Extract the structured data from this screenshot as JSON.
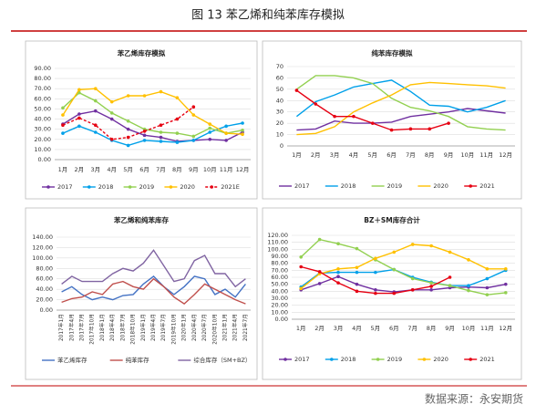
{
  "header": {
    "title": "图 13 苯乙烯和纯苯库存模拟"
  },
  "footer": {
    "source": "数据来源：永安期货"
  },
  "chart_data": [
    {
      "type": "line",
      "title": "苯乙烯库存模拟",
      "markers": true,
      "grid": true,
      "categories": [
        "1月",
        "2月",
        "3月",
        "4月",
        "5月",
        "6月",
        "7月",
        "8月",
        "9月",
        "10月",
        "11月",
        "12月"
      ],
      "ylim": [
        0,
        90
      ],
      "yticks": [
        {
          "value": 0,
          "label": "0.00"
        },
        {
          "value": 10,
          "label": "10.00"
        },
        {
          "value": 20,
          "label": "20.00"
        },
        {
          "value": 30,
          "label": "30.00"
        },
        {
          "value": 40,
          "label": "40.00"
        },
        {
          "value": 50,
          "label": "50.00"
        },
        {
          "value": 60,
          "label": "60.00"
        },
        {
          "value": 70,
          "label": "70.00"
        },
        {
          "value": 80,
          "label": "80.00"
        },
        {
          "value": 90,
          "label": "90.00"
        }
      ],
      "series": [
        {
          "name": "2017",
          "color": "#7030a0",
          "values": [
            35,
            45,
            48,
            40,
            30,
            24,
            22,
            18,
            19,
            20,
            19,
            27
          ]
        },
        {
          "name": "2018",
          "color": "#00a0e9",
          "values": [
            26,
            33,
            27,
            19,
            14,
            19,
            18,
            17,
            19,
            27,
            33,
            36
          ]
        },
        {
          "name": "2019",
          "color": "#92d050",
          "values": [
            51,
            66,
            58,
            46,
            38,
            30,
            27,
            26,
            23,
            31,
            26,
            29
          ]
        },
        {
          "name": "2020",
          "color": "#ffc000",
          "values": [
            44,
            69,
            70,
            57,
            63,
            63,
            67,
            61,
            44,
            35,
            26,
            25
          ]
        },
        {
          "name": "2021E",
          "color": "#e60012",
          "dash": true,
          "values": [
            34,
            41,
            34,
            20,
            22,
            28,
            34,
            40,
            52,
            null,
            null,
            null
          ]
        }
      ]
    },
    {
      "type": "line",
      "title": "纯苯库存模拟",
      "markers": false,
      "grid": true,
      "categories": [
        "1月",
        "2月",
        "3月",
        "4月",
        "5月",
        "6月",
        "7月",
        "8月",
        "9月",
        "10月",
        "11月",
        "12月"
      ],
      "ylim": [
        0,
        70
      ],
      "yticks": [
        0,
        10,
        20,
        30,
        40,
        50,
        60,
        70
      ],
      "series": [
        {
          "name": "2017",
          "color": "#7030a0",
          "values": [
            14,
            15,
            22,
            20,
            20,
            21,
            26,
            28,
            30,
            33,
            31,
            29
          ]
        },
        {
          "name": "2018",
          "color": "#00a0e9",
          "values": [
            26,
            39,
            45,
            52,
            55,
            58,
            48,
            36,
            35,
            30,
            34,
            40
          ]
        },
        {
          "name": "2019",
          "color": "#92d050",
          "values": [
            50,
            62,
            62,
            60,
            55,
            42,
            34,
            31,
            26,
            17,
            15,
            14
          ]
        },
        {
          "name": "2020",
          "color": "#ffc000",
          "values": [
            10,
            11,
            17,
            30,
            38,
            45,
            54,
            56,
            55,
            54,
            53,
            51
          ]
        },
        {
          "name": "2021",
          "color": "#e60012",
          "markers": true,
          "values": [
            49,
            37,
            26,
            26,
            20,
            14,
            15,
            15,
            20,
            null,
            null,
            null
          ]
        }
      ]
    },
    {
      "type": "line",
      "title": "苯乙烯和纯苯库存",
      "markers": false,
      "grid": true,
      "rotate_x": true,
      "categories": [
        "2017年1月",
        "2017年4月",
        "2017年7月",
        "2017年10月",
        "2018年1月",
        "2018年4月",
        "2018年7月",
        "2018年10月",
        "2019年1月",
        "2019年4月",
        "2019年7月",
        "2019年10月",
        "2020年1月",
        "2020年4月",
        "2020年7月",
        "2020年10月",
        "2021年1月",
        "2021年4月",
        "2021年7月"
      ],
      "ylim": [
        0,
        140
      ],
      "yticks": [
        {
          "value": 0,
          "label": "0.00"
        },
        {
          "value": 20,
          "label": "20.00"
        },
        {
          "value": 40,
          "label": "40.00"
        },
        {
          "value": 60,
          "label": "60.00"
        },
        {
          "value": 80,
          "label": "80.00"
        },
        {
          "value": 100,
          "label": "100.00"
        },
        {
          "value": 120,
          "label": "120.00"
        },
        {
          "value": 140,
          "label": "140.00"
        }
      ],
      "series": [
        {
          "name": "苯乙烯库存",
          "color": "#4472c4",
          "values": [
            35,
            45,
            30,
            20,
            25,
            20,
            28,
            30,
            50,
            65,
            45,
            30,
            45,
            65,
            60,
            30,
            40,
            25,
            50
          ]
        },
        {
          "name": "纯苯库存",
          "color": "#c0504d",
          "values": [
            15,
            22,
            25,
            35,
            30,
            50,
            55,
            45,
            40,
            60,
            45,
            25,
            12,
            30,
            50,
            40,
            30,
            20,
            12
          ]
        },
        {
          "name": "综合库存（SM+BZ）",
          "color": "#8064a2",
          "values": [
            50,
            65,
            55,
            55,
            55,
            70,
            80,
            75,
            90,
            115,
            85,
            55,
            60,
            95,
            105,
            70,
            70,
            45,
            60
          ]
        }
      ]
    },
    {
      "type": "line",
      "title": "BZ＋SM库存合计",
      "markers": true,
      "grid": true,
      "categories": [
        "1月",
        "2月",
        "3月",
        "4月",
        "5月",
        "6月",
        "7月",
        "8月",
        "9月",
        "10月",
        "11月",
        "12月"
      ],
      "ylim": [
        0,
        120
      ],
      "yticks": [
        {
          "value": 0,
          "label": "0.00"
        },
        {
          "value": 10,
          "label": "10.00"
        },
        {
          "value": 20,
          "label": "20.00"
        },
        {
          "value": 30,
          "label": "30.00"
        },
        {
          "value": 40,
          "label": "40.00"
        },
        {
          "value": 50,
          "label": "50.00"
        },
        {
          "value": 60,
          "label": "60.00"
        },
        {
          "value": 70,
          "label": "70.00"
        },
        {
          "value": 80,
          "label": "80.00"
        },
        {
          "value": 90,
          "label": "90.00"
        },
        {
          "value": 100,
          "label": "100.00"
        },
        {
          "value": 110,
          "label": "110.00"
        },
        {
          "value": 120,
          "label": "120.00"
        }
      ],
      "series": [
        {
          "name": "2017",
          "color": "#7030a0",
          "values": [
            42,
            51,
            61,
            50,
            42,
            39,
            42,
            42,
            45,
            46,
            45,
            50
          ]
        },
        {
          "name": "2018",
          "color": "#00a0e9",
          "values": [
            46,
            66,
            67,
            67,
            67,
            71,
            60,
            53,
            48,
            48,
            58,
            70
          ]
        },
        {
          "name": "2019",
          "color": "#92d050",
          "values": [
            89,
            114,
            108,
            101,
            85,
            71,
            58,
            52,
            48,
            41,
            35,
            38
          ]
        },
        {
          "name": "2020",
          "color": "#ffc000",
          "values": [
            44,
            65,
            72,
            74,
            87,
            96,
            107,
            105,
            96,
            85,
            72,
            72
          ]
        },
        {
          "name": "2021",
          "color": "#e60012",
          "values": [
            75,
            68,
            52,
            40,
            37,
            37,
            42,
            47,
            60,
            null,
            null,
            null
          ]
        }
      ]
    }
  ]
}
